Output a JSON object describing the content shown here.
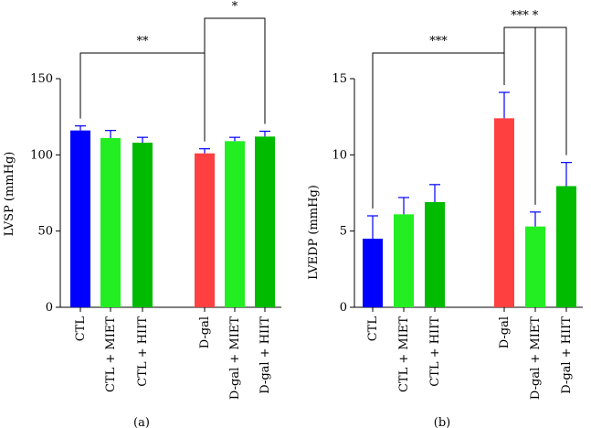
{
  "chart_data": [
    {
      "type": "bar",
      "panel_label": "(a)",
      "ylabel": "LVSP (mmHg)",
      "ylim": [
        0,
        150
      ],
      "yticks": [
        "0",
        "50",
        "100",
        "150"
      ],
      "categories": [
        "CTL",
        "CTL + MIET",
        "CTL + HIIT",
        "D-gal",
        "D-gal + MIET",
        "D-gal + HIIT"
      ],
      "values": [
        116,
        111,
        108,
        101,
        109,
        112
      ],
      "errors": [
        3,
        5,
        3.5,
        3,
        2.5,
        3.5
      ],
      "bar_colors": [
        "#0000ff",
        "#22ee22",
        "#00bb00",
        "#ff4040",
        "#22ee22",
        "#00bb00"
      ],
      "error_color": "#0000ff",
      "significance": [
        {
          "from": 0,
          "to": 3,
          "label": "**"
        },
        {
          "from": 3,
          "to": 5,
          "label": "*"
        }
      ]
    },
    {
      "type": "bar",
      "panel_label": "(b)",
      "ylabel": "LVEDP (mmHg)",
      "ylim": [
        0,
        15
      ],
      "yticks": [
        "0",
        "5",
        "10",
        "15"
      ],
      "categories": [
        "CTL",
        "CTL + MIET",
        "CTL + HIIT",
        "D-gal",
        "D-gal + MIET",
        "D-gal + HIIT"
      ],
      "values": [
        4.5,
        6.1,
        6.9,
        12.4,
        5.3,
        7.95
      ],
      "errors": [
        1.5,
        1.1,
        1.15,
        1.7,
        0.95,
        1.55
      ],
      "bar_colors": [
        "#0000ff",
        "#22ee22",
        "#00bb00",
        "#ff4040",
        "#22ee22",
        "#00bb00"
      ],
      "error_color": "#0000ff",
      "significance": [
        {
          "from": 0,
          "to": 3,
          "label": "***"
        },
        {
          "from": 3,
          "to": 4,
          "label": "***"
        },
        {
          "from": 3,
          "to": 5,
          "label": "*"
        }
      ]
    }
  ]
}
